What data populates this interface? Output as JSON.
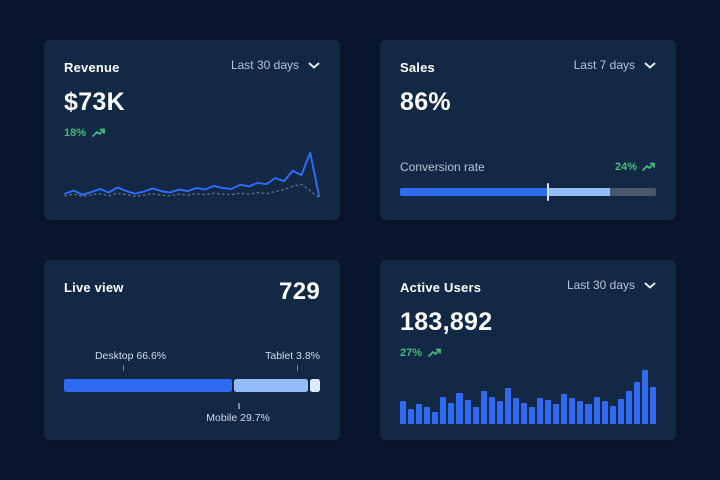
{
  "colors": {
    "page_bg": "#0b1730",
    "card_bg": "#122845",
    "accent_blue": "#2f6bf2",
    "light_blue": "#93bdf8",
    "pale_blue": "#dde9fc",
    "track_gray": "#49566b",
    "green": "#45b97c",
    "muted_text": "#b9c3d4",
    "label_text": "#d3dbe8",
    "marker": "#cfe2fd",
    "baseline_line": "#5d6d86"
  },
  "cards": {
    "revenue": {
      "title": "Revenue",
      "range_label": "Last 30 days",
      "value": "$73K",
      "delta": "18%"
    },
    "sales": {
      "title": "Sales",
      "range_label": "Last 7 days",
      "value": "86%",
      "metric_label": "Conversion rate",
      "delta": "24%"
    },
    "live_view": {
      "title": "Live view",
      "value": "729",
      "desktop_label": "Desktop 66.6%",
      "mobile_label": "Mobile 29.7%",
      "tablet_label": "Tablet 3.8%"
    },
    "active_users": {
      "title": "Active Users",
      "range_label": "Last 30 days",
      "value": "183,892",
      "delta": "27%"
    }
  },
  "chart_data": [
    {
      "id": "revenue_trend",
      "type": "line",
      "title": "Revenue",
      "ylim": [
        0,
        100
      ],
      "series": [
        {
          "name": "revenue",
          "color": "#2f6bf2",
          "line_style": "solid",
          "values": [
            16,
            22,
            14,
            19,
            25,
            18,
            28,
            21,
            16,
            20,
            26,
            21,
            18,
            24,
            21,
            27,
            24,
            31,
            27,
            25,
            33,
            30,
            37,
            34,
            46,
            40,
            60,
            52,
            95,
            12
          ]
        },
        {
          "name": "previous-period",
          "color": "#5d6d86",
          "line_style": "dotted",
          "values": [
            12,
            15,
            11,
            14,
            16,
            12,
            17,
            14,
            11,
            13,
            16,
            13,
            12,
            15,
            13,
            16,
            14,
            17,
            15,
            14,
            17,
            15,
            18,
            16,
            20,
            24,
            30,
            34,
            22,
            8
          ]
        }
      ]
    },
    {
      "id": "sales_conversion",
      "type": "progress",
      "title": "Conversion rate",
      "marker_pct": 58,
      "segments": [
        {
          "name": "primary",
          "pct": 58,
          "color": "#2f6bf2"
        },
        {
          "name": "secondary",
          "pct": 24,
          "color": "#93bdf8"
        },
        {
          "name": "remaining",
          "pct": 18,
          "color": "#49566b"
        }
      ]
    },
    {
      "id": "live_view_devices",
      "type": "stacked-bar",
      "title": "Live view",
      "segments": [
        {
          "name": "desktop",
          "pct": 66.6,
          "color": "#2f6bf2"
        },
        {
          "name": "mobile",
          "pct": 29.7,
          "color": "#93bdf8"
        },
        {
          "name": "tablet",
          "pct": 3.8,
          "color": "#dde9fc"
        }
      ]
    },
    {
      "id": "active_users_bars",
      "type": "bar",
      "title": "Active Users",
      "ylim": [
        0,
        100
      ],
      "color": "#2f6bf2",
      "values": [
        38,
        25,
        33,
        28,
        20,
        45,
        35,
        52,
        40,
        28,
        55,
        45,
        38,
        60,
        44,
        35,
        28,
        44,
        40,
        34,
        50,
        44,
        38,
        34,
        45,
        38,
        30,
        42,
        55,
        70,
        90,
        62
      ]
    }
  ]
}
